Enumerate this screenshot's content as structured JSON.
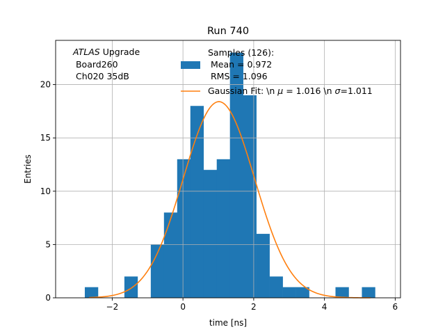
{
  "chart_data": {
    "type": "histogram_with_fit",
    "title": "Run 740",
    "xlabel": "time [ns]",
    "ylabel": "Entries",
    "xlim": [
      -3.6,
      6.15
    ],
    "ylim": [
      0,
      24.15
    ],
    "xticks": [
      -2,
      0,
      2,
      4,
      6
    ],
    "xtick_labels": [
      "−2",
      "0",
      "2",
      "4",
      "6"
    ],
    "yticks": [
      0,
      5,
      10,
      15,
      20
    ],
    "ytick_labels": [
      "0",
      "5",
      "10",
      "15",
      "20"
    ],
    "grid": true,
    "annotation": {
      "italic_part": "ATLAS",
      "normal_part": " Upgrade",
      "line2": " Board260",
      "line3": " Ch020 35dB"
    },
    "histogram": {
      "name": "Samples (126):",
      "stats_line1": " Mean = 0.972",
      "stats_line2": " RMS = 1.096",
      "color": "#1f77b4",
      "bin_edges": [
        -2.775,
        -2.402,
        -2.029,
        -1.656,
        -1.283,
        -0.91,
        -0.537,
        -0.164,
        0.209,
        0.582,
        0.955,
        1.328,
        1.701,
        2.074,
        2.447,
        2.82,
        3.193,
        3.566,
        3.939,
        4.312,
        4.685,
        5.058,
        5.431
      ],
      "counts": [
        1,
        0,
        0,
        2,
        0,
        5,
        8,
        13,
        18,
        12,
        13,
        23,
        19,
        6,
        2,
        1,
        1,
        0,
        0,
        1,
        0,
        1
      ]
    },
    "fit": {
      "label": "Gaussian Fit: \\n $\\mu$ = 1.016 \\n $\\sigma$=1.011",
      "label_pre": "Gaussian Fit: \\n ",
      "label_mu_sym": "μ",
      "label_mid": " = 1.016 \\n ",
      "label_sigma_sym": "σ",
      "label_post": "=1.011",
      "color": "#ff7f0e",
      "mu": 1.016,
      "sigma": 1.011,
      "amplitude": 18.4,
      "x_range": [
        -2.65,
        5.3
      ]
    },
    "legend_position": "upper center"
  }
}
